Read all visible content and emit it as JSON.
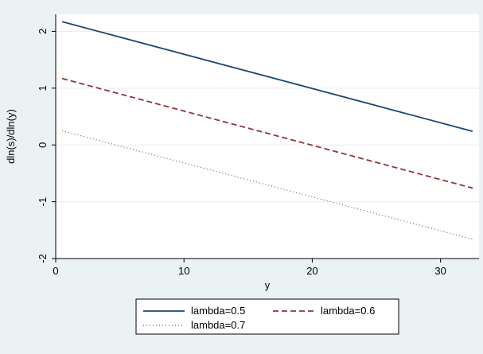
{
  "chart_data": {
    "type": "line",
    "xlabel": "y",
    "ylabel": "dln(s)/dln(y)",
    "xlim": [
      0,
      33
    ],
    "ylim": [
      -2,
      2.3
    ],
    "xticks": [
      0,
      10,
      20,
      30
    ],
    "yticks": [
      2,
      1,
      0,
      -1,
      -2
    ],
    "grid": true,
    "legend_position": "bottom",
    "background": "#eaf2f3",
    "plot_background": "#ffffff",
    "series": [
      {
        "name": "lambda=0.5",
        "color": "#1a476f",
        "style": "solid",
        "x": [
          0.5,
          32.5
        ],
        "y": [
          2.17,
          0.24
        ]
      },
      {
        "name": "lambda=0.6",
        "color": "#90353b",
        "style": "dash",
        "x": [
          0.5,
          32.5
        ],
        "y": [
          1.17,
          -0.76
        ]
      },
      {
        "name": "lambda=0.7",
        "color": "#55752f",
        "style": "dot",
        "x": [
          0.5,
          32.5
        ],
        "y": [
          0.25,
          -1.66
        ]
      }
    ]
  }
}
